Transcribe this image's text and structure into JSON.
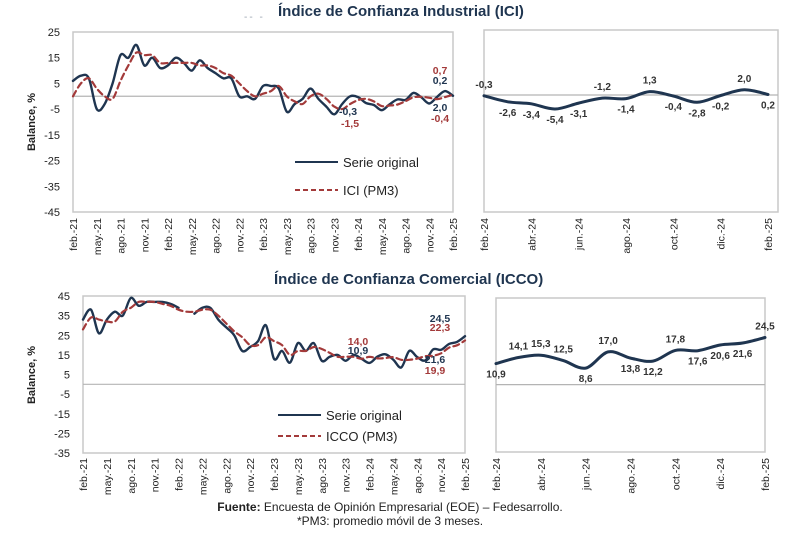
{
  "titles": {
    "ici": "Índice de Confianza Industrial (ICI)",
    "icco": "Índice de Confianza Comercial (ICCO)"
  },
  "footer": {
    "source_label": "Fuente:",
    "source_text": " Encuesta de Opinión Empresarial (EOE) – Fedesarrollo.",
    "note": "*PM3: promedio móvil de 3 meses."
  },
  "colors": {
    "original": "#1f3550",
    "pm3": "#a33a3a",
    "frame": "#c8c8c8",
    "zero_line": "#b4b4b4"
  },
  "chart_data": [
    {
      "id": "ici-long",
      "type": "line",
      "title": "Índice de Confianza Industrial (ICI)",
      "ylabel": "Balance, %",
      "ylim": [
        -45,
        25
      ],
      "yticks": [
        25,
        15,
        5,
        -5,
        -15,
        -25,
        -35,
        -45
      ],
      "xtick_labels": [
        "feb.-21",
        "may.-21",
        "ago.-21",
        "nov.-21",
        "feb.-22",
        "may.-22",
        "ago.-22",
        "nov.-22",
        "feb.-23",
        "may.-23",
        "ago.-23",
        "nov.-23",
        "feb.-24",
        "may.-24",
        "ago.-24",
        "nov.-24",
        "feb.-25"
      ],
      "legend": {
        "placement": "bottom-right",
        "entries": [
          "Serie original",
          "ICI (PM3)"
        ]
      },
      "series": [
        {
          "name": "Serie original",
          "style": "solid",
          "values": [
            6,
            8,
            7,
            -5,
            -3,
            5,
            16,
            15,
            20,
            12,
            15,
            11,
            12,
            15,
            13,
            10,
            14,
            11,
            9,
            7,
            7,
            0,
            0,
            -1,
            4,
            4,
            3,
            -6,
            -3,
            -1,
            3,
            -1,
            -4,
            -7,
            -3,
            0,
            -0.3,
            -2.6,
            -3.4,
            -5.4,
            -3.1,
            -1.2,
            -1.4,
            1.3,
            -0.4,
            -2.8,
            -0.2,
            2.0,
            0.2
          ]
        },
        {
          "name": "ICI (PM3)",
          "style": "dashed",
          "values": [
            0,
            5,
            7,
            3,
            0,
            -1,
            6,
            12,
            17,
            16,
            16,
            13,
            13,
            13,
            13,
            13,
            12,
            12,
            11,
            9,
            8,
            5,
            2,
            0,
            1,
            2,
            4,
            0,
            -2,
            -3,
            0,
            1,
            -1,
            -4,
            -5,
            -3,
            -1.5,
            -1,
            -2,
            -3.8,
            -3.6,
            -3.2,
            -1.9,
            -0.4,
            -0.2,
            -0.6,
            -1.1,
            -0.3,
            0.7
          ]
        }
      ],
      "annotations": [
        {
          "text": "0,7",
          "series": "ICI (PM3)"
        },
        {
          "text": "0,2",
          "series": "Serie original"
        },
        {
          "text": "-0,3",
          "series": "Serie original"
        },
        {
          "text": "-1,5",
          "series": "ICI (PM3)"
        },
        {
          "text": "2,0",
          "series": "Serie original"
        },
        {
          "text": "-0,4",
          "series": "ICI (PM3)"
        }
      ]
    },
    {
      "id": "ici-recent",
      "type": "line",
      "xtick_labels": [
        "feb.-24",
        "abr.-24",
        "jun.-24",
        "ago.-24",
        "oct.-24",
        "dic.-24",
        "feb.-25"
      ],
      "ylim": [
        -45,
        25
      ],
      "series": [
        {
          "name": "Serie original",
          "values": [
            -0.3,
            -2.6,
            -3.4,
            -5.4,
            -3.1,
            -1.2,
            -1.4,
            1.3,
            -0.4,
            -2.8,
            -0.2,
            2.0,
            0.2
          ],
          "labels": [
            "-0,3",
            "-2,6",
            "-3,4",
            "-5,4",
            "-3,1",
            "-1,2",
            "-1,4",
            "1,3",
            "-0,4",
            "-2,8",
            "-0,2",
            "2,0",
            "0,2"
          ]
        }
      ]
    },
    {
      "id": "icco-long",
      "type": "line",
      "title": "Índice de Confianza Comercial (ICCO)",
      "ylabel": "Balance, %",
      "ylim": [
        -35,
        45
      ],
      "yticks": [
        45,
        35,
        25,
        15,
        5,
        -5,
        -15,
        -25,
        -35
      ],
      "xtick_labels": [
        "feb.-21",
        "may.-21",
        "ago.-21",
        "nov.-21",
        "feb.-22",
        "may.-22",
        "ago.-22",
        "nov.-22",
        "feb.-23",
        "may.-23",
        "ago.-23",
        "nov.-23",
        "feb.-24",
        "may.-24",
        "ago.-24",
        "nov.-24",
        "feb.-25"
      ],
      "legend": {
        "placement": "bottom-right",
        "entries": [
          "Serie original",
          "ICCO (PM3)"
        ]
      },
      "series": [
        {
          "name": "Serie original",
          "style": "solid",
          "values": [
            33,
            38,
            26,
            33,
            37,
            35,
            44,
            40,
            42,
            42,
            42,
            41,
            39,
            null,
            36,
            39,
            39,
            33,
            29,
            25,
            17,
            19,
            22,
            30,
            13,
            17,
            11,
            21,
            17,
            21,
            12,
            14,
            15,
            12,
            15,
            13,
            10.9,
            14.1,
            15.3,
            12.5,
            8.6,
            17.0,
            13.8,
            12.2,
            17.8,
            17.6,
            20.6,
            21.6,
            24.5
          ]
        },
        {
          "name": "ICCO (PM3)",
          "style": "dashed",
          "values": [
            28,
            34,
            33,
            32,
            32,
            37,
            39,
            42,
            42,
            42,
            41,
            40,
            38,
            37,
            37,
            38,
            38,
            35,
            31,
            27,
            24,
            20,
            20,
            24,
            22,
            20,
            15,
            17,
            17,
            19,
            18,
            16,
            14,
            14,
            14,
            13,
            14.0,
            13.2,
            13.4,
            13.8,
            12.5,
            12.5,
            13.1,
            14.3,
            14.6,
            15.8,
            18.7,
            19.9,
            22.3
          ]
        }
      ],
      "annotations": [
        {
          "text": "24,5",
          "series": "Serie original"
        },
        {
          "text": "22,3",
          "series": "ICCO (PM3)"
        },
        {
          "text": "14,0",
          "series": "ICCO (PM3)"
        },
        {
          "text": "10,9",
          "series": "Serie original"
        },
        {
          "text": "21,6",
          "series": "Serie original"
        },
        {
          "text": "19,9",
          "series": "ICCO (PM3)"
        }
      ]
    },
    {
      "id": "icco-recent",
      "type": "line",
      "xtick_labels": [
        "feb.-24",
        "abr.-24",
        "jun.-24",
        "ago.-24",
        "oct.-24",
        "dic.-24",
        "feb.-25"
      ],
      "ylim": [
        -35,
        45
      ],
      "series": [
        {
          "name": "Serie original",
          "values": [
            10.9,
            14.1,
            15.3,
            12.5,
            8.6,
            17.0,
            13.8,
            12.2,
            17.8,
            17.6,
            20.6,
            21.6,
            24.5
          ],
          "labels": [
            "10,9",
            "14,1",
            "15,3",
            "12,5",
            "8,6",
            "17,0",
            "13,8",
            "12,2",
            "17,8",
            "17,6",
            "20,6",
            "21,6",
            "24,5"
          ]
        }
      ]
    }
  ]
}
